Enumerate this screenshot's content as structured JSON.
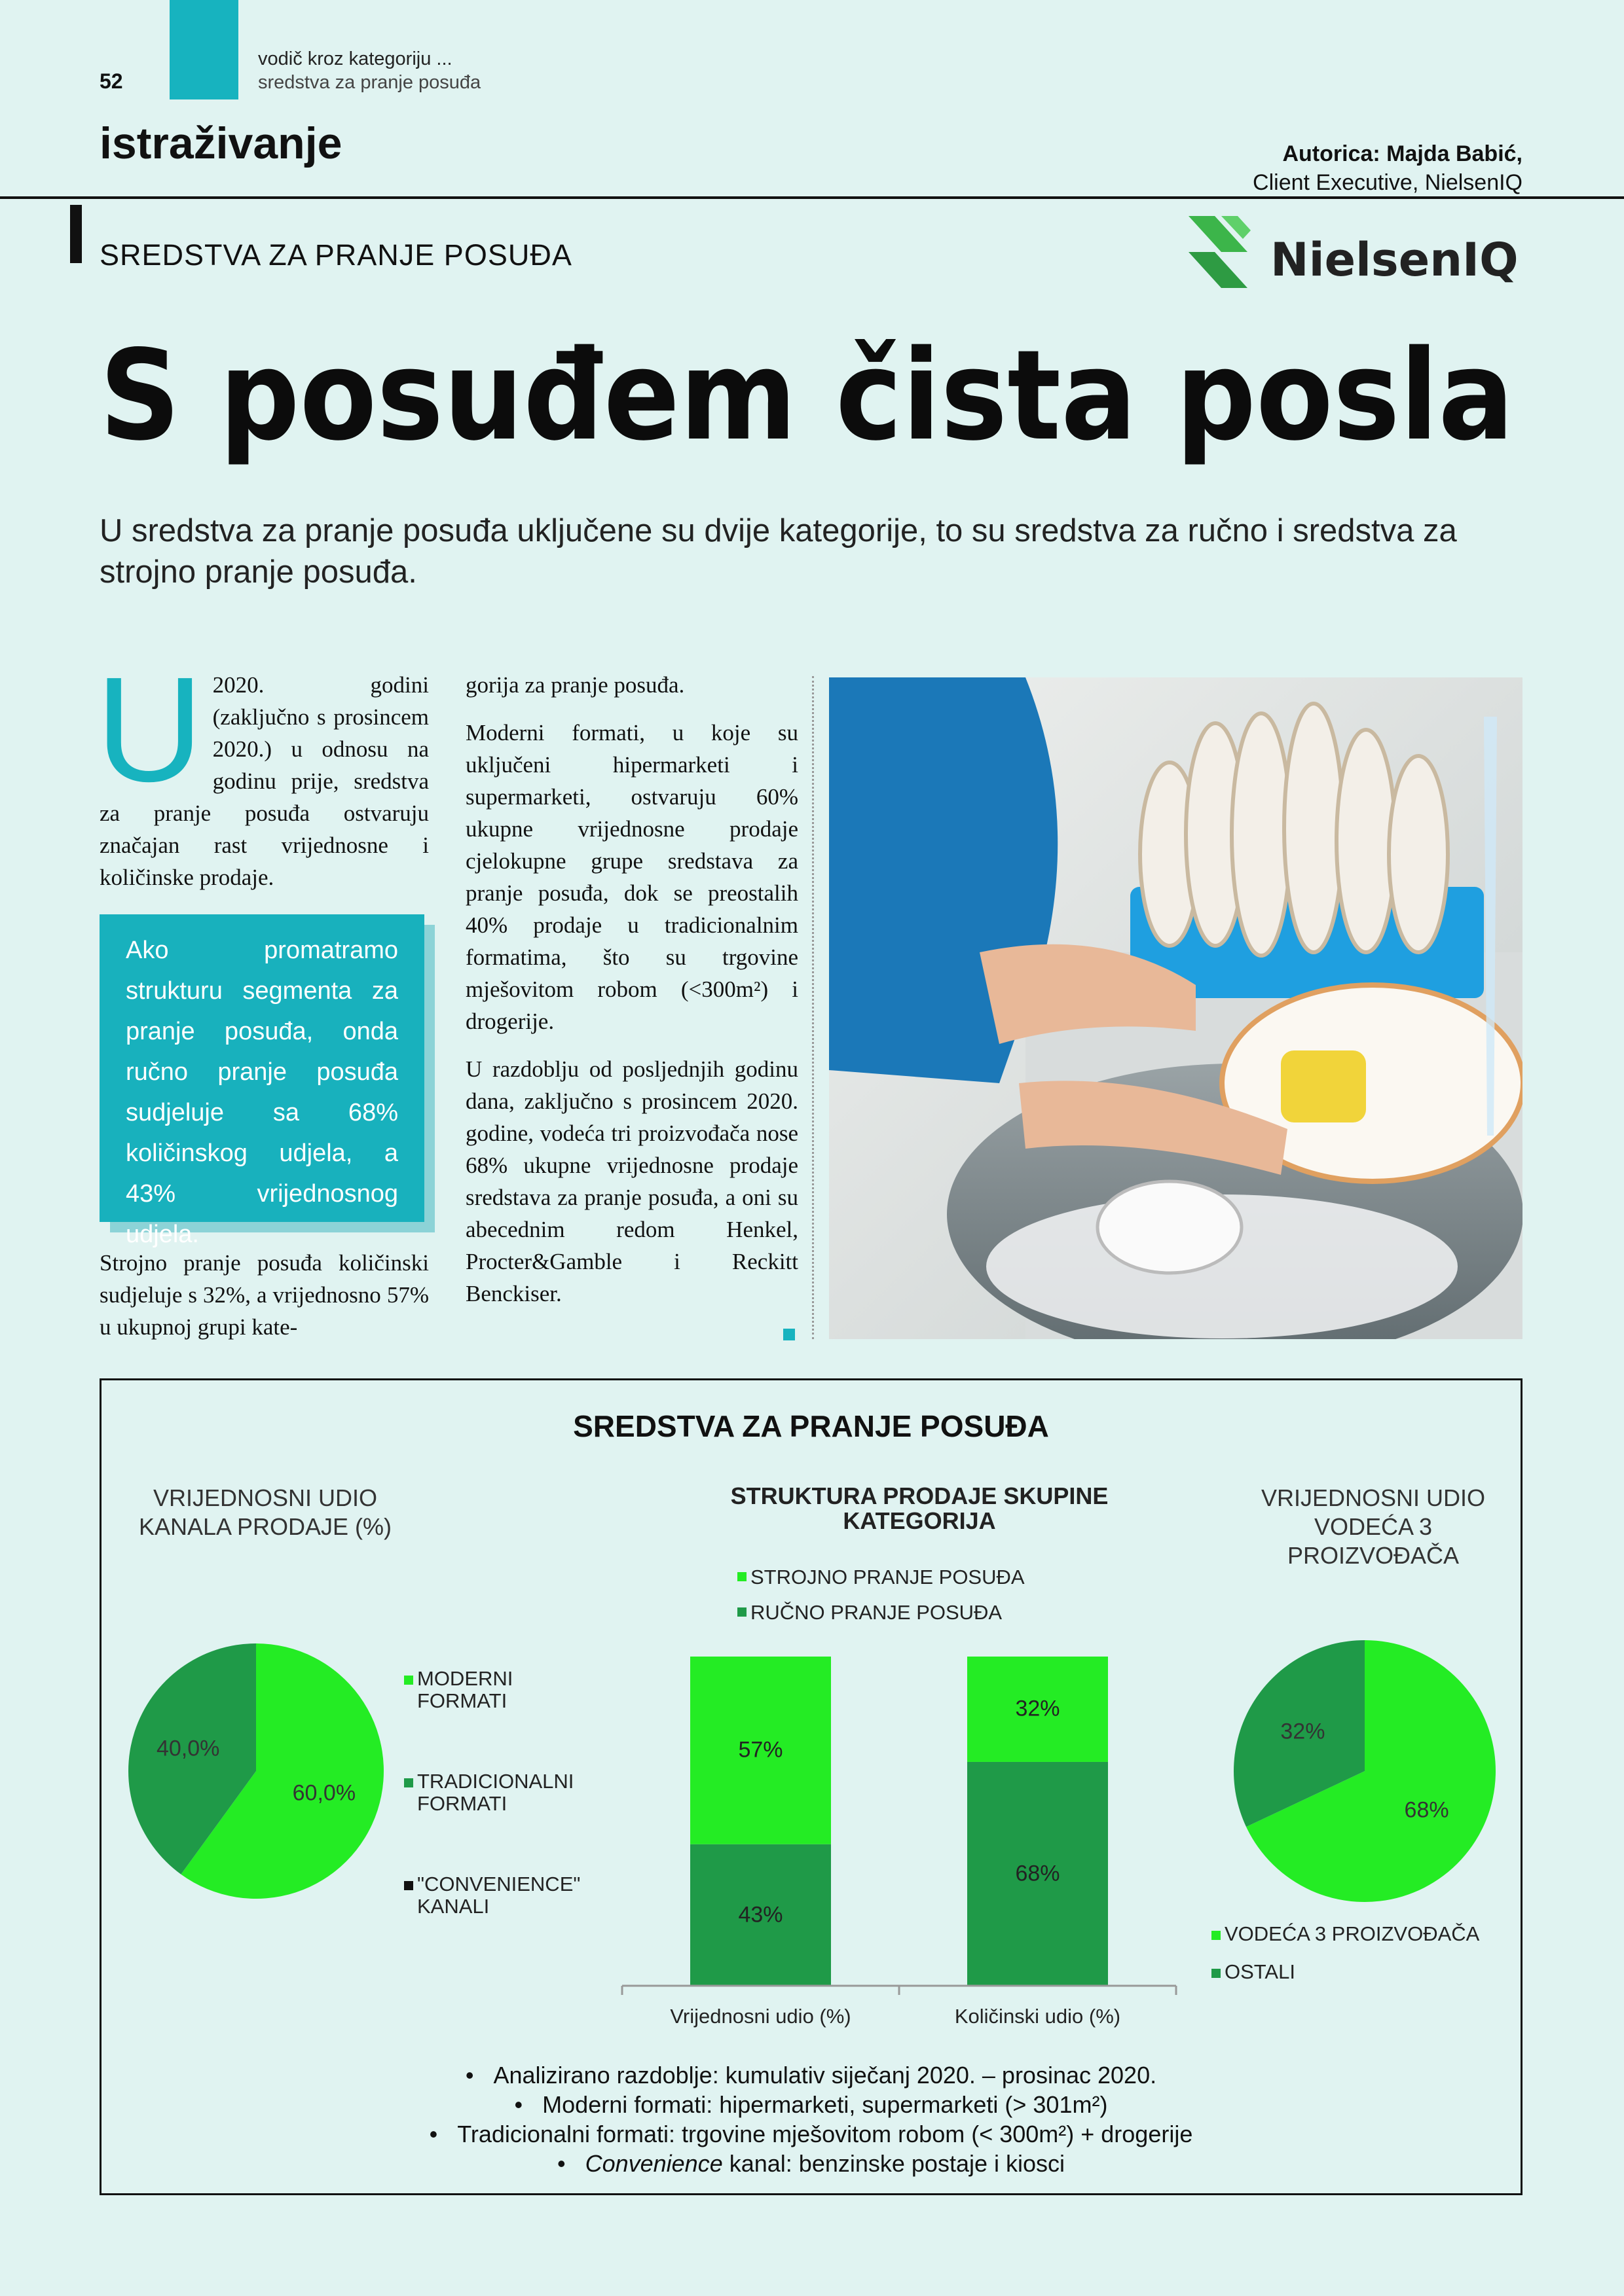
{
  "header": {
    "page_number": "52",
    "section_path": [
      "vodič kroz kategoriju ...",
      "sredstva za pranje posuđa"
    ],
    "section": "istraživanje",
    "author": "Autorica: Majda Babić,",
    "author_role": "Client Executive, NielsenIQ",
    "category": "SREDSTVA ZA PRANJE POSUĐA",
    "logo": "NielsenIQ"
  },
  "article": {
    "title": "S posuđem čista posla",
    "lead": "U sredstva za pranje posuđa uključene su dvije kategorije, to su sredstva za ručno i sredstva za strojno pranje posuđa.",
    "drop_cap": "U",
    "column1": [
      "2020. godini (zaključno s prosincem 2020.) u odnosu na godinu prije, sredstva za pranje posuđa ostvaruju značajan rast vrijednosne i količinske prodaje.",
      "Strojno pranje posuđa količinski sudjeluje s 32%, a vrijednosno 57% u ukupnoj grupi kate-"
    ],
    "highlight": "Ako promatramo strukturu segmenta za pranje posuđa, onda ručno pranje posuđa sudjeluje sa 68% količinskog udjela, a 43% vrijednosnog udjela.",
    "column2": [
      "gorija za pranje posuđa.",
      "Moderni formati, u koje su uključeni hipermarketi i supermarketi, ostvaruju 60% ukupne vrijednosne prodaje cjelokupne grupe sredstava za pranje posuđa, dok se preostalih 40% prodaje u tradicionalnim formatima, što su trgovine mješovitom robom (<300m²) i drogerije.",
      "U razdoblju od posljednjih godinu dana, zaključno s prosincem 2020. godine, vodeća tri proizvođača nose 68% ukupne vrijednosne prodaje sredstava za pranje posuđa, a oni su abecednim redom Henkel, Procter&Gamble i Reckitt Benckiser."
    ]
  },
  "infographic": {
    "title": "SREDSTVA ZA PRANJE POSUĐA",
    "notes": [
      "Analizirano razdoblje: kumulativ siječanj 2020. – prosinac 2020.",
      "Moderni formati: hipermarketi, supermarketi (> 301m²)",
      "Tradicionalni formati: trgovine mješovitom robom (< 300m²) + drogerije",
      {
        "italic": "Convenience",
        "text": " kanal: benzinske postaje i kiosci"
      }
    ]
  },
  "chart_data": [
    {
      "type": "pie",
      "title": "VRIJEDNOSNI UDIO KANALA PRODAJE (%)",
      "categories": [
        "MODERNI FORMATI",
        "TRADICIONALNI FORMATI",
        "\"CONVENIENCE\" KANALI"
      ],
      "values": [
        60,
        40,
        0
      ],
      "value_labels": [
        "60,0%",
        "40,0%",
        null
      ],
      "colors": [
        "#24ec24",
        "#1f9a48",
        "#111111"
      ]
    },
    {
      "type": "bar",
      "stacked": true,
      "title": "STRUKTURA PRODAJE SKUPINE KATEGORIJA",
      "categories": [
        "Vrijednosni udio (%)",
        "Količinski udio (%)"
      ],
      "series": [
        {
          "name": "STROJNO PRANJE POSUĐA",
          "color": "#24ec24",
          "values": [
            57,
            32
          ],
          "value_labels": [
            "57%",
            "32%"
          ]
        },
        {
          "name": "RUČNO PRANJE POSUĐA",
          "color": "#1f9a48",
          "values": [
            43,
            68
          ],
          "value_labels": [
            "43%",
            "68%"
          ]
        }
      ],
      "ylim": [
        0,
        100
      ]
    },
    {
      "type": "pie",
      "title": "VRIJEDNOSNI UDIO VODEĆA 3 PROIZVOĐAČA",
      "categories": [
        "VODEĆA 3 PROIZVOĐAČA",
        "OSTALI"
      ],
      "values": [
        68,
        32
      ],
      "value_labels": [
        "68%",
        "32%"
      ],
      "colors": [
        "#24ec24",
        "#1f9a48"
      ]
    }
  ]
}
